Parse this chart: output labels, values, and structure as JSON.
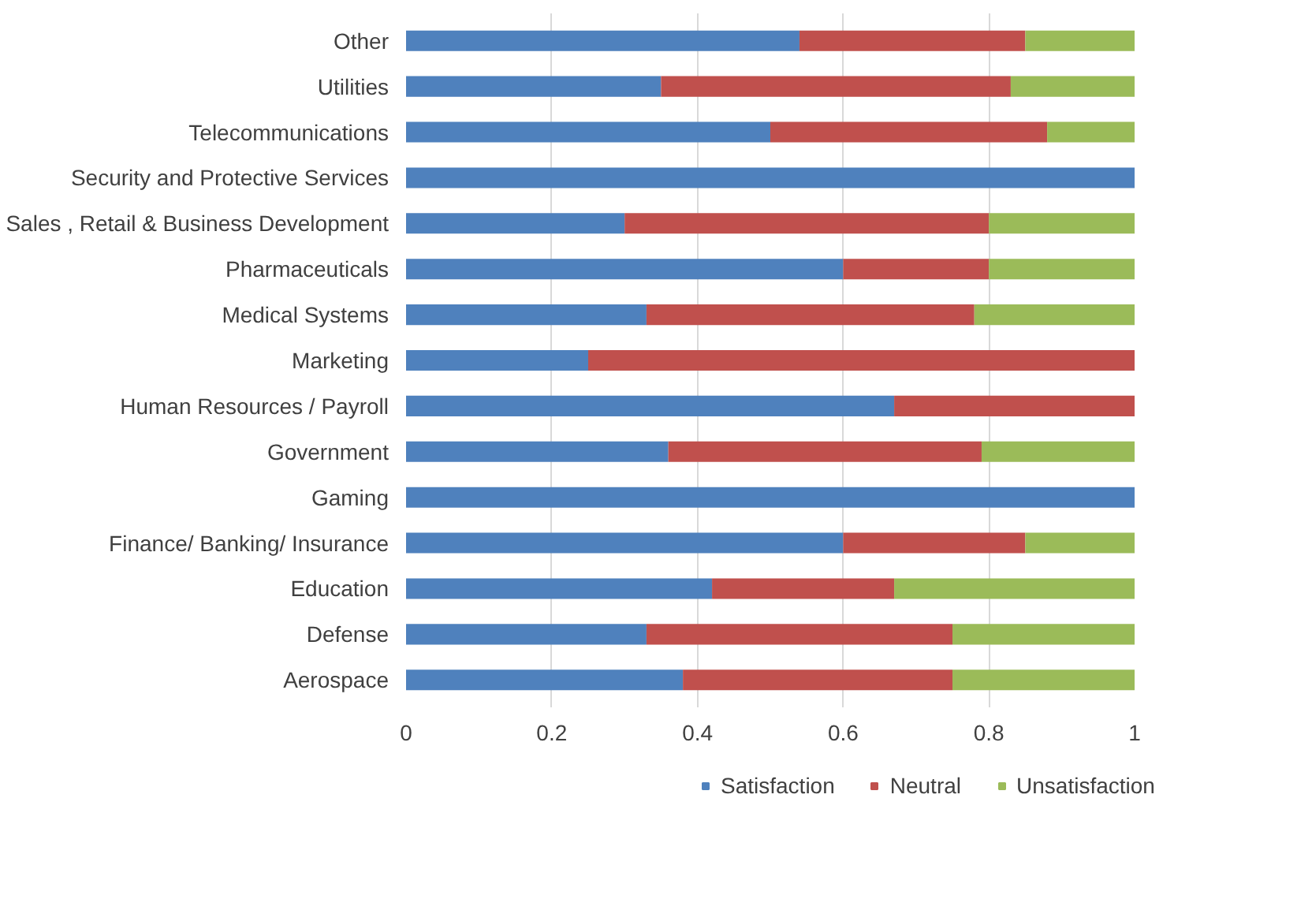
{
  "chart_data": {
    "type": "bar",
    "orientation": "horizontal",
    "stacked": true,
    "categories": [
      "Other",
      "Utilities",
      "Telecommunications",
      "Security and Protective Services",
      "Sales , Retail & Business Development",
      "Pharmaceuticals",
      "Medical Systems",
      "Marketing",
      "Human Resources / Payroll",
      "Government",
      "Gaming",
      "Finance/ Banking/ Insurance",
      "Education",
      "Defense",
      "Aerospace"
    ],
    "series": [
      {
        "name": "Satisfaction",
        "color": "#4f81bd",
        "values": [
          0.54,
          0.35,
          0.5,
          1,
          0.3,
          0.6,
          0.33,
          0.25,
          0.67,
          0.36,
          1,
          0.6,
          0.42,
          0.33,
          0.38
        ]
      },
      {
        "name": "Neutral",
        "color": "#c0504d",
        "values": [
          0.31,
          0.48,
          0.38,
          0,
          0.5,
          0.2,
          0.45,
          0.75,
          0.33,
          0.43,
          0,
          0.25,
          0.25,
          0.42,
          0.37
        ]
      },
      {
        "name": "Unsatisfaction",
        "color": "#9bbb59",
        "values": [
          0.15,
          0.17,
          0.12,
          0,
          0.2,
          0.2,
          0.22,
          0,
          0,
          0.21,
          0,
          0.15,
          0.33,
          0.25,
          0.25
        ]
      }
    ],
    "xlim": [
      0,
      1
    ],
    "xticks": [
      0,
      0.2,
      0.4,
      0.6,
      0.8,
      1
    ],
    "grid": "x",
    "legend": "bottom"
  }
}
